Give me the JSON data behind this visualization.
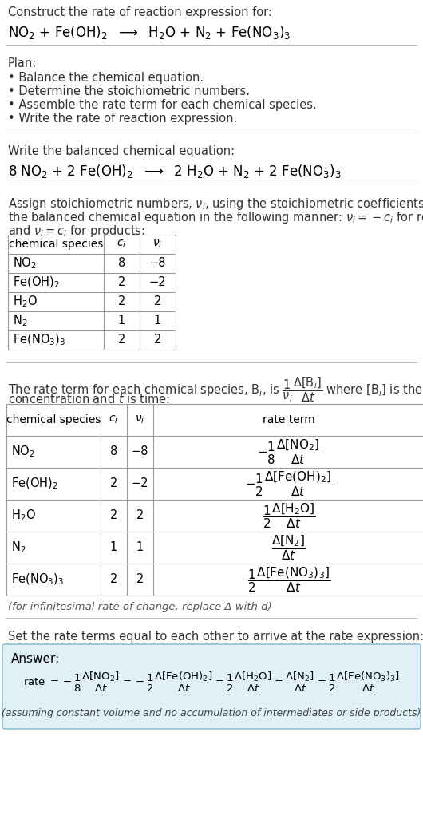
{
  "bg_color": "#ffffff",
  "title_line1": "Construct the rate of reaction expression for:",
  "plan_header": "Plan:",
  "plan_items": [
    "• Balance the chemical equation.",
    "• Determine the stoichiometric numbers.",
    "• Assemble the rate term for each chemical species.",
    "• Write the rate of reaction expression."
  ],
  "balanced_header": "Write the balanced chemical equation:",
  "table1_headers": [
    "chemical species",
    "c_i",
    "v_i"
  ],
  "table1_species": [
    "NO₂",
    "Fe(OH)₂",
    "H₂O",
    "N₂",
    "Fe(NO₃)₃"
  ],
  "table1_ci": [
    "8",
    "2",
    "2",
    "1",
    "2"
  ],
  "table1_vi": [
    "−8",
    "−2",
    "2",
    "1",
    "2"
  ],
  "table2_headers": [
    "chemical species",
    "c_i",
    "v_i",
    "rate term"
  ],
  "infinitesimal_note": "(for infinitesimal rate of change, replace Δ with d)",
  "set_equal_text": "Set the rate terms equal to each other to arrive at the rate expression:",
  "answer_label": "Answer:",
  "answer_box_color": "#dff0f7",
  "answer_border_color": "#90bfd0",
  "answer_note": "(assuming constant volume and no accumulation of intermediates or side products)"
}
